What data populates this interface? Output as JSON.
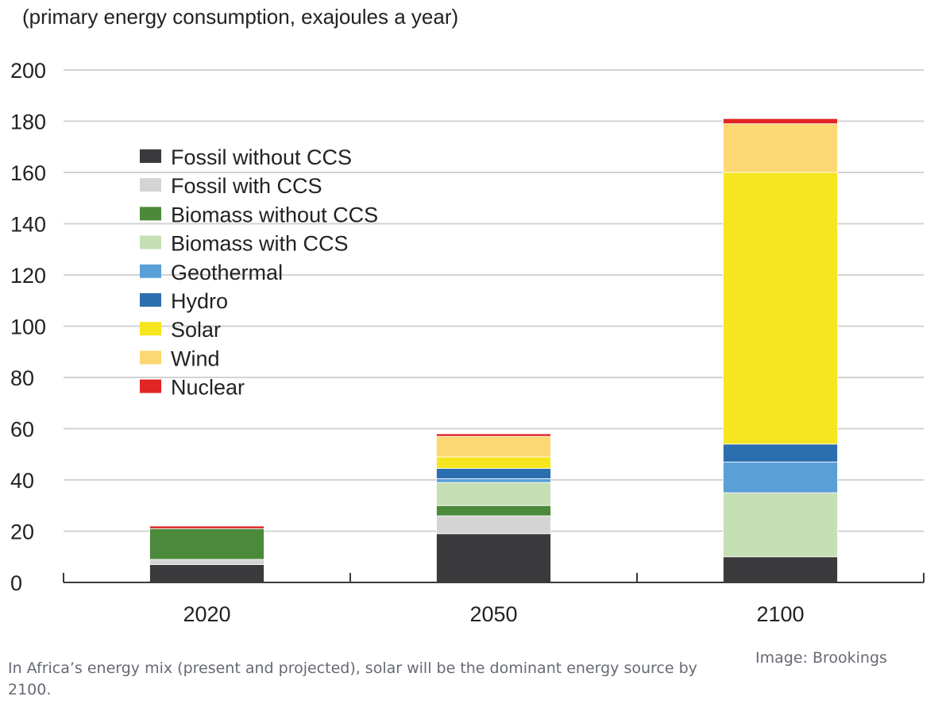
{
  "chart_data": {
    "type": "bar",
    "stacked": true,
    "units_label": "(primary energy consumption, exajoules a year)",
    "categories": [
      "2020",
      "2050",
      "2100"
    ],
    "ylim": [
      0,
      200
    ],
    "yticks": [
      0,
      20,
      40,
      60,
      80,
      100,
      120,
      140,
      160,
      180,
      200
    ],
    "grid": true,
    "legend_position": "upper-left",
    "series": [
      {
        "name": "Fossil without CCS",
        "color": "#3a3a3c",
        "values": [
          7,
          19,
          10
        ]
      },
      {
        "name": "Fossil with CCS",
        "color": "#d4d4d4",
        "values": [
          2,
          7,
          0
        ]
      },
      {
        "name": "Biomass without CCS",
        "color": "#4a8a3a",
        "values": [
          12,
          4,
          0
        ]
      },
      {
        "name": "Biomass with CCS",
        "color": "#c5e0b4",
        "values": [
          0,
          9,
          25
        ]
      },
      {
        "name": "Geothermal",
        "color": "#5a9fd8",
        "values": [
          0,
          1.5,
          12
        ]
      },
      {
        "name": "Hydro",
        "color": "#2c6fae",
        "values": [
          0,
          4,
          7
        ]
      },
      {
        "name": "Solar",
        "color": "#f5e61f",
        "values": [
          0,
          4.5,
          106
        ]
      },
      {
        "name": "Wind",
        "color": "#fcd772",
        "values": [
          0,
          8,
          19
        ]
      },
      {
        "name": "Nuclear",
        "color": "#e12424",
        "values": [
          1,
          1,
          2
        ]
      }
    ]
  },
  "caption": "In Africa’s energy mix (present and projected), solar will be the dominant energy source by 2100.",
  "credit": "Image: Brookings"
}
